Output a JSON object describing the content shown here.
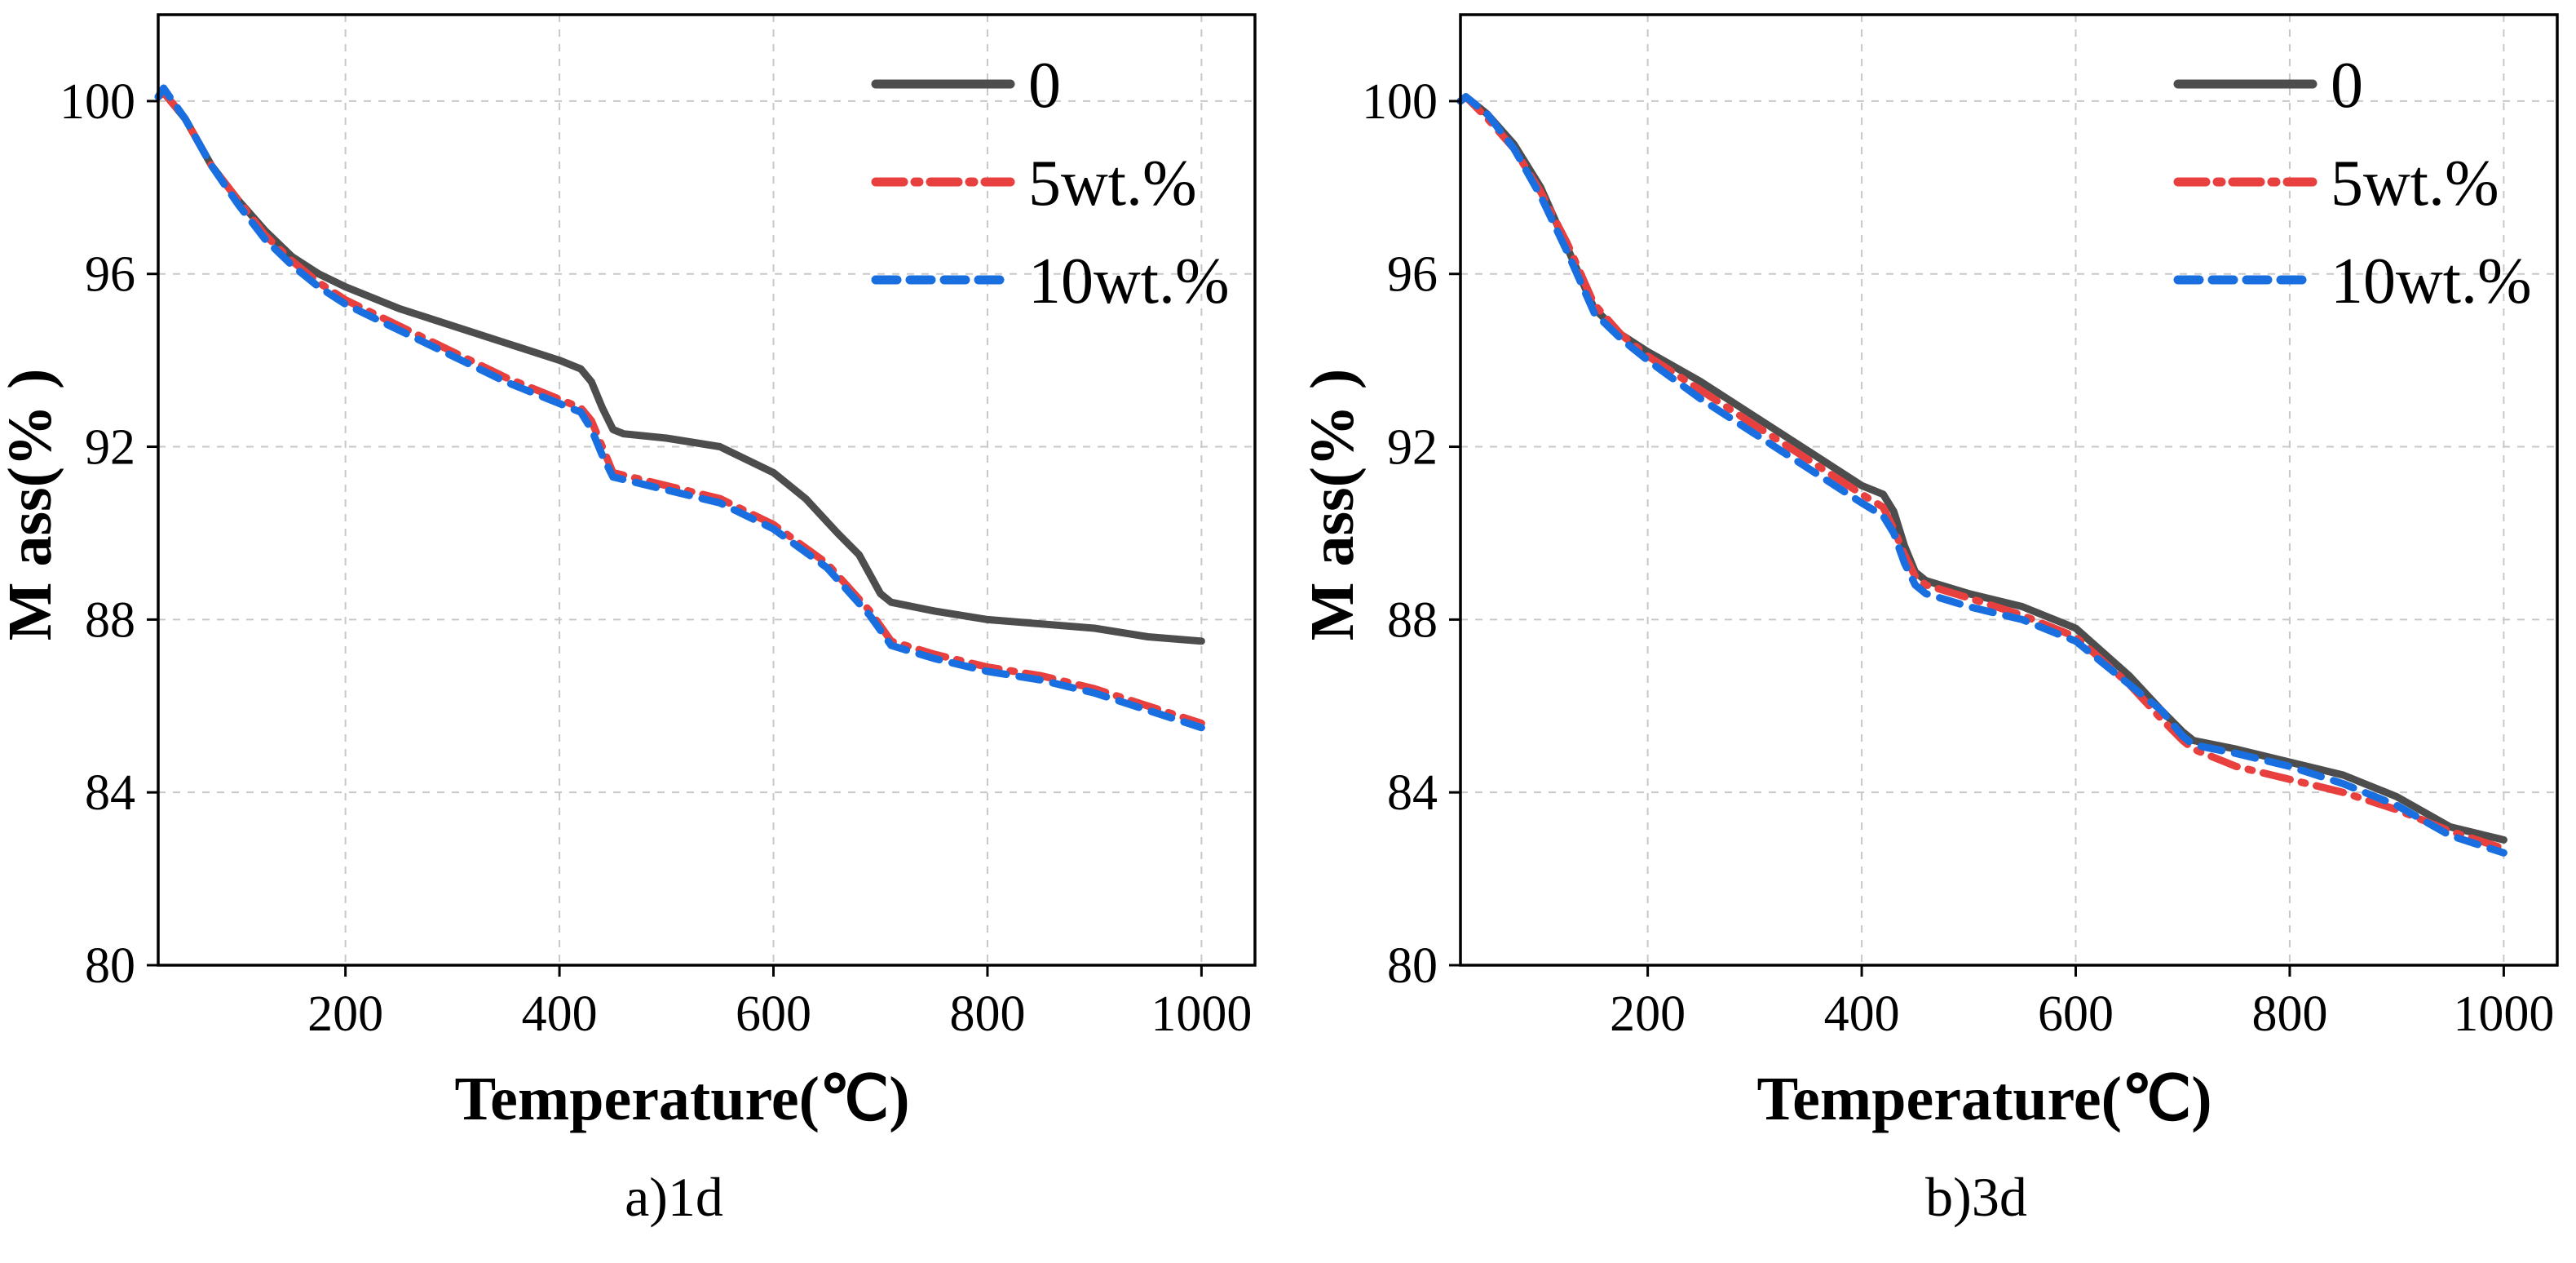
{
  "chart_data": [
    {
      "type": "line",
      "caption": "a)1d",
      "xlabel": "Temperature(℃)",
      "ylabel": "M ass(% )",
      "xlim": [
        25,
        1050
      ],
      "ylim": [
        80,
        102
      ],
      "xticks": [
        200,
        400,
        600,
        800,
        1000
      ],
      "yticks": [
        80,
        84,
        88,
        92,
        96,
        100
      ],
      "grid": true,
      "legend_position": "top-right",
      "series": [
        {
          "name": "0",
          "color": "#4d4d4d",
          "style": "solid",
          "x": [
            25,
            30,
            50,
            75,
            100,
            125,
            150,
            175,
            200,
            250,
            300,
            350,
            400,
            420,
            430,
            440,
            450,
            460,
            500,
            550,
            600,
            630,
            660,
            680,
            700,
            710,
            750,
            800,
            850,
            900,
            950,
            1000
          ],
          "y": [
            100.1,
            100.2,
            99.6,
            98.5,
            97.7,
            97.0,
            96.4,
            96.0,
            95.7,
            95.2,
            94.8,
            94.4,
            94.0,
            93.8,
            93.5,
            92.9,
            92.4,
            92.3,
            92.2,
            92.0,
            91.4,
            90.8,
            90.0,
            89.5,
            88.6,
            88.4,
            88.2,
            88.0,
            87.9,
            87.8,
            87.6,
            87.5
          ]
        },
        {
          "name": "5wt.%",
          "color": "#e8403f",
          "style": "dashdot",
          "x": [
            25,
            30,
            50,
            75,
            100,
            125,
            150,
            175,
            200,
            250,
            300,
            350,
            400,
            420,
            430,
            440,
            450,
            500,
            550,
            600,
            650,
            690,
            710,
            750,
            800,
            850,
            900,
            950,
            1000
          ],
          "y": [
            100.1,
            100.2,
            99.6,
            98.5,
            97.7,
            96.9,
            96.3,
            95.8,
            95.4,
            94.8,
            94.2,
            93.6,
            93.1,
            92.9,
            92.6,
            92.0,
            91.4,
            91.1,
            90.8,
            90.2,
            89.3,
            88.2,
            87.5,
            87.2,
            86.9,
            86.7,
            86.4,
            86.0,
            85.6
          ]
        },
        {
          "name": "10wt.%",
          "color": "#1a6fe0",
          "style": "dashed",
          "x": [
            25,
            30,
            50,
            75,
            100,
            125,
            150,
            175,
            200,
            250,
            300,
            350,
            400,
            420,
            430,
            440,
            450,
            500,
            550,
            600,
            650,
            690,
            710,
            750,
            800,
            850,
            900,
            950,
            1000
          ],
          "y": [
            100.1,
            100.3,
            99.6,
            98.5,
            97.6,
            96.8,
            96.2,
            95.7,
            95.3,
            94.7,
            94.1,
            93.5,
            93.0,
            92.8,
            92.4,
            91.8,
            91.3,
            91.0,
            90.7,
            90.1,
            89.2,
            88.1,
            87.4,
            87.1,
            86.8,
            86.6,
            86.3,
            85.9,
            85.5
          ]
        }
      ]
    },
    {
      "type": "line",
      "caption": "b)3d",
      "xlabel": "Temperature(℃)",
      "ylabel": "M ass(% )",
      "xlim": [
        25,
        1050
      ],
      "ylim": [
        80,
        102
      ],
      "xticks": [
        200,
        400,
        600,
        800,
        1000
      ],
      "yticks": [
        80,
        84,
        88,
        92,
        96,
        100
      ],
      "grid": true,
      "legend_position": "top-right",
      "series": [
        {
          "name": "0",
          "color": "#4d4d4d",
          "style": "solid",
          "x": [
            25,
            30,
            50,
            75,
            100,
            125,
            150,
            175,
            200,
            250,
            300,
            350,
            400,
            420,
            430,
            440,
            450,
            460,
            500,
            550,
            600,
            650,
            680,
            700,
            710,
            750,
            800,
            850,
            900,
            950,
            1000
          ],
          "y": [
            100.0,
            100.1,
            99.7,
            99.0,
            98.0,
            96.6,
            95.2,
            94.6,
            94.2,
            93.5,
            92.7,
            91.9,
            91.1,
            90.9,
            90.5,
            89.7,
            89.1,
            88.9,
            88.6,
            88.3,
            87.8,
            86.7,
            85.9,
            85.4,
            85.2,
            85.0,
            84.7,
            84.4,
            83.9,
            83.2,
            82.9
          ]
        },
        {
          "name": "5wt.%",
          "color": "#e8403f",
          "style": "dashdot",
          "x": [
            25,
            30,
            50,
            75,
            100,
            125,
            150,
            175,
            200,
            250,
            300,
            350,
            400,
            420,
            430,
            440,
            450,
            460,
            500,
            550,
            600,
            650,
            680,
            700,
            710,
            750,
            800,
            850,
            900,
            950,
            1000
          ],
          "y": [
            100.0,
            100.1,
            99.6,
            98.9,
            97.9,
            96.7,
            95.3,
            94.6,
            94.1,
            93.3,
            92.5,
            91.7,
            90.9,
            90.6,
            90.1,
            89.5,
            89.0,
            88.8,
            88.5,
            88.1,
            87.6,
            86.5,
            85.7,
            85.2,
            85.0,
            84.6,
            84.3,
            84.0,
            83.6,
            83.1,
            82.7
          ]
        },
        {
          "name": "10wt.%",
          "color": "#1a6fe0",
          "style": "dashed",
          "x": [
            25,
            30,
            50,
            75,
            100,
            125,
            150,
            175,
            200,
            250,
            300,
            350,
            400,
            420,
            430,
            440,
            450,
            460,
            500,
            550,
            600,
            650,
            680,
            700,
            710,
            750,
            800,
            850,
            900,
            950,
            1000
          ],
          "y": [
            100.0,
            100.1,
            99.7,
            98.9,
            97.8,
            96.5,
            95.1,
            94.5,
            94.0,
            93.1,
            92.3,
            91.5,
            90.7,
            90.4,
            90.0,
            89.3,
            88.8,
            88.6,
            88.3,
            88.0,
            87.5,
            86.5,
            85.9,
            85.3,
            85.1,
            84.9,
            84.6,
            84.2,
            83.7,
            83.0,
            82.6
          ]
        }
      ]
    }
  ]
}
